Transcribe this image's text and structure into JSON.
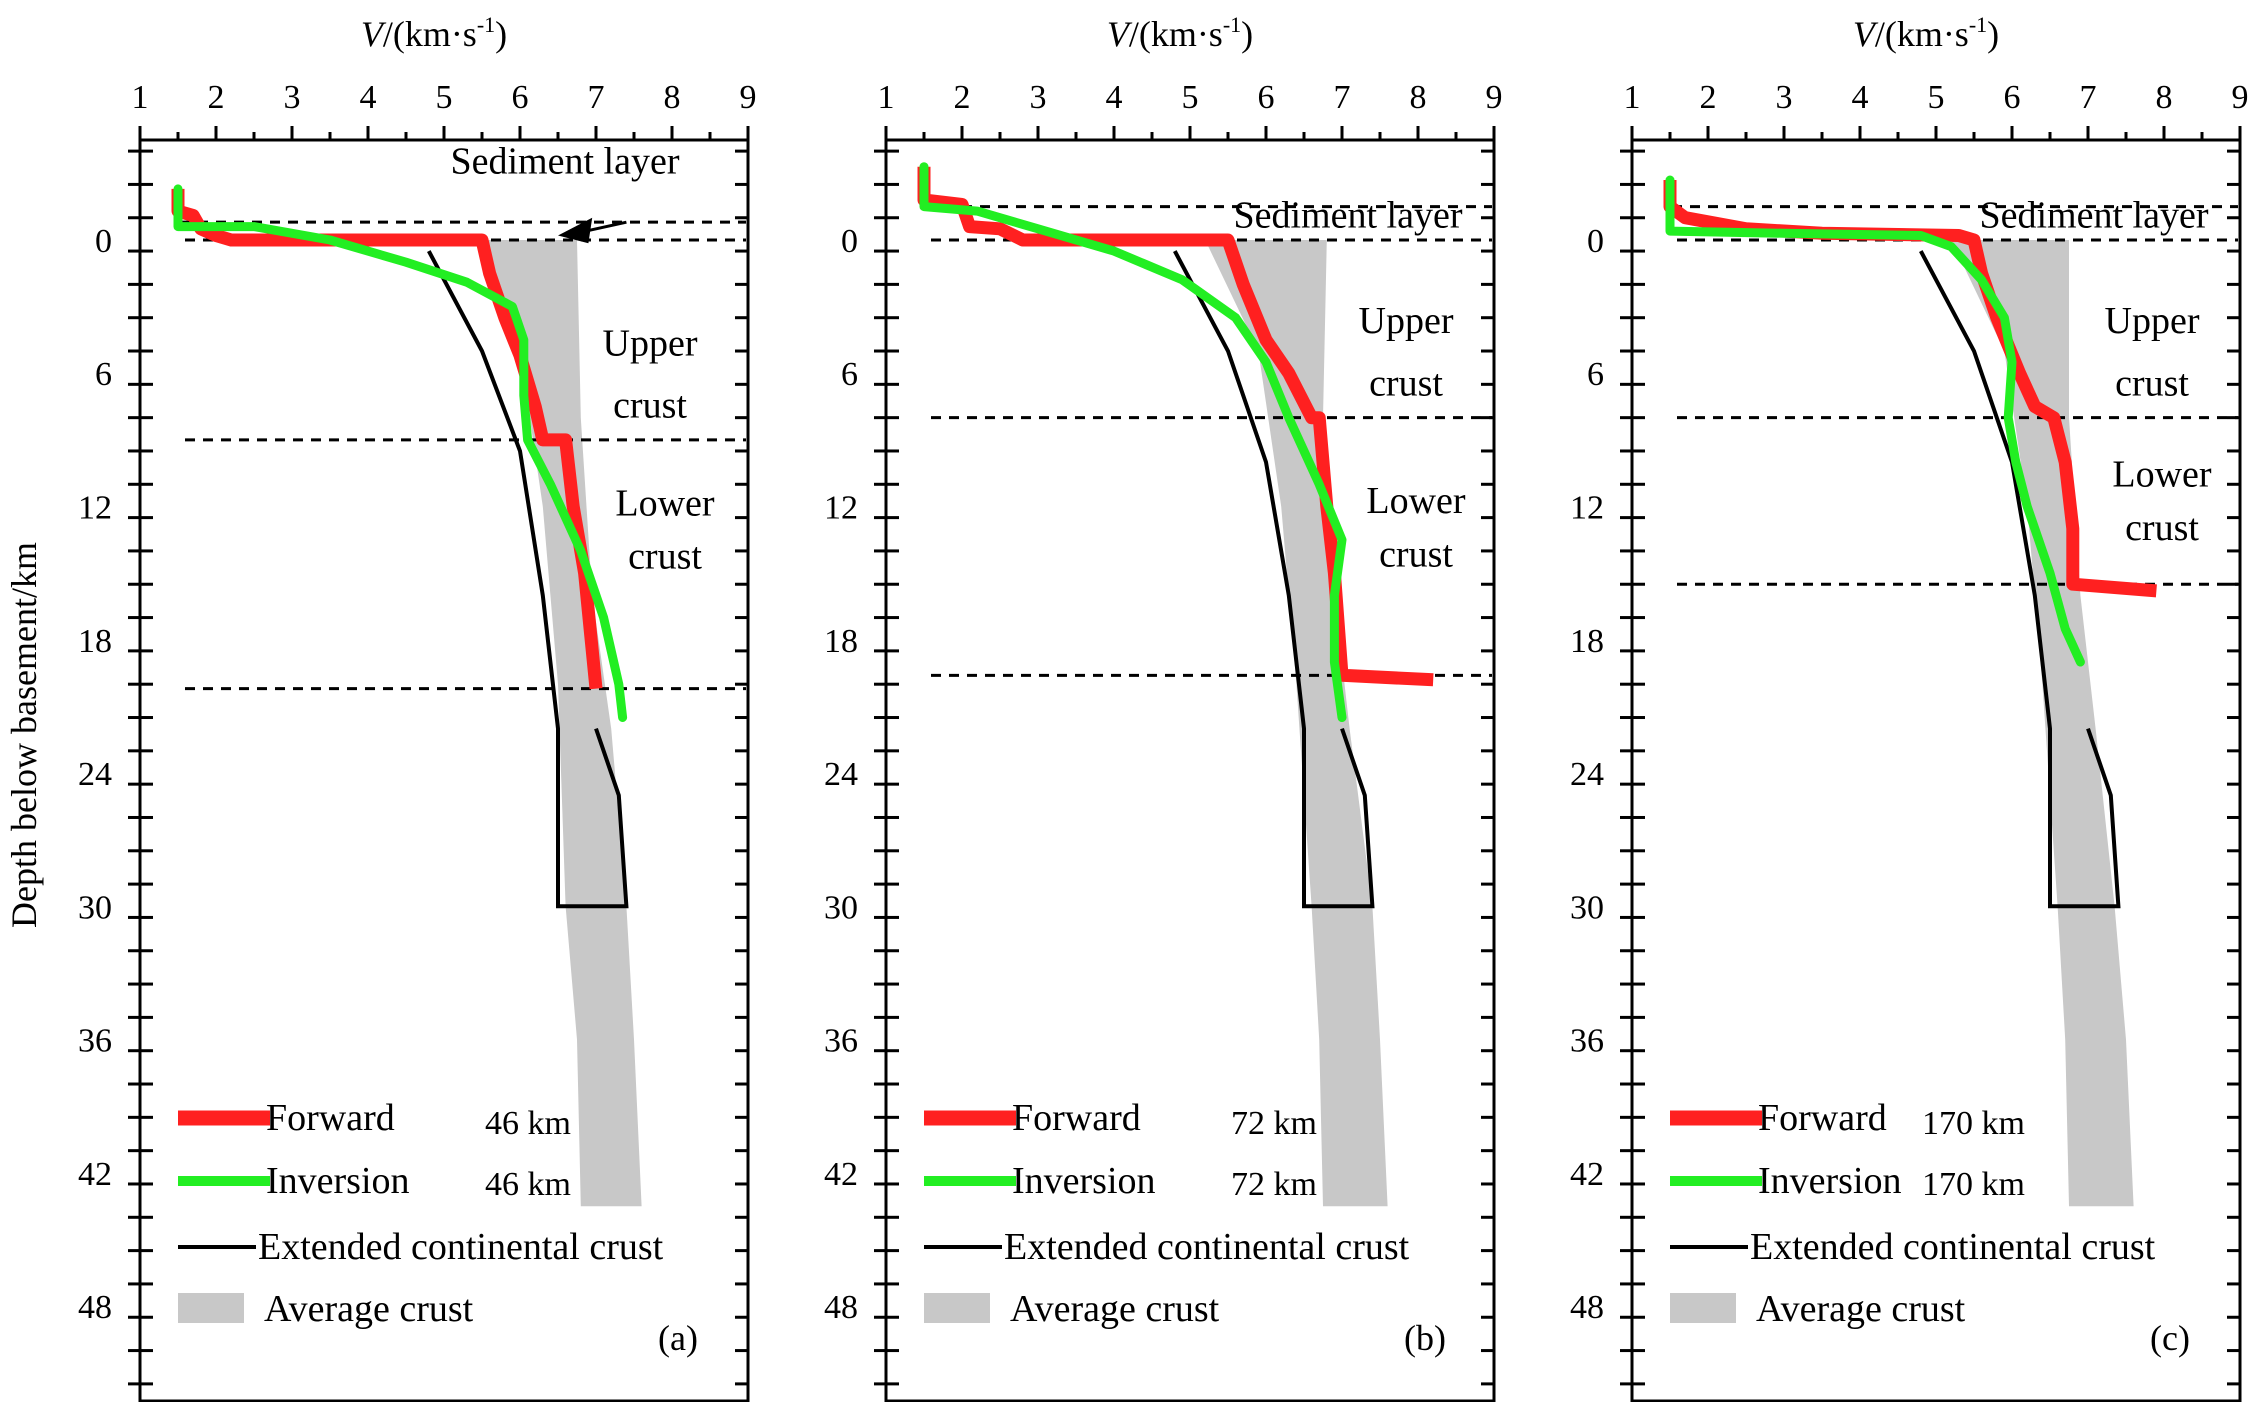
{
  "figure": {
    "y_axis_label": "Depth below basement/km",
    "x_axis_label_var": "V",
    "x_axis_label_unit": "/(km·s",
    "x_axis_label_exp": "-1",
    "x_axis_label_close": ")"
  },
  "colors": {
    "forward": "#ff2020",
    "inversion": "#22ee22",
    "extended": "#000000",
    "average": "#c8c8c8"
  },
  "chart_data": [
    {
      "type": "line",
      "panel_label": "(a)",
      "xlim": [
        1,
        9
      ],
      "ylim": [
        -4.5,
        52
      ],
      "x_ticks": [
        1,
        2,
        3,
        4,
        5,
        6,
        7,
        8,
        9
      ],
      "y_ticks": [
        0,
        6,
        12,
        18,
        24,
        30,
        36,
        42,
        48
      ],
      "layer_labels": [
        "Sediment layer",
        "Upper",
        "crust",
        "Lower",
        "crust"
      ],
      "boundaries": [
        -0.8,
        0,
        9,
        20.2
      ],
      "legend": {
        "forward": "Forward",
        "forward_dist": "46 km",
        "inversion": "Inversion",
        "inversion_dist": "46 km",
        "extended": "Extended continental crust",
        "average": "Average crust"
      },
      "series": [
        {
          "name": "Forward",
          "points": [
            [
              1.5,
              -2.3
            ],
            [
              1.5,
              -1.3
            ],
            [
              1.7,
              -1.1
            ],
            [
              1.8,
              -0.5
            ],
            [
              2,
              -0.2
            ],
            [
              2.2,
              0
            ],
            [
              5.5,
              0
            ],
            [
              5.6,
              1.5
            ],
            [
              5.8,
              3.5
            ],
            [
              6.0,
              5.2
            ],
            [
              6.2,
              7.5
            ],
            [
              6.3,
              9
            ],
            [
              6.6,
              9
            ],
            [
              6.7,
              12
            ],
            [
              6.85,
              15
            ],
            [
              7.0,
              20.2
            ]
          ]
        },
        {
          "name": "Inversion",
          "points": [
            [
              1.5,
              -2.3
            ],
            [
              1.5,
              -0.6
            ],
            [
              2.5,
              -0.6
            ],
            [
              3.5,
              0
            ],
            [
              4.5,
              1
            ],
            [
              5.3,
              1.9
            ],
            [
              5.9,
              3
            ],
            [
              6.05,
              4.5
            ],
            [
              6.05,
              7
            ],
            [
              6.1,
              9
            ],
            [
              6.4,
              11
            ],
            [
              6.8,
              14
            ],
            [
              7.1,
              17
            ],
            [
              7.3,
              20
            ],
            [
              7.35,
              21.5
            ]
          ]
        },
        {
          "name": "Extended continental crust",
          "points": [
            [
              4.8,
              0.5
            ],
            [
              5.5,
              5
            ],
            [
              6.0,
              9.5
            ],
            [
              6.3,
              16
            ],
            [
              6.5,
              22
            ],
            [
              6.5,
              30
            ],
            [
              7.4,
              30
            ],
            [
              7.3,
              25
            ],
            [
              7.0,
              22
            ]
          ]
        },
        {
          "name": "Average crust",
          "left": [
            [
              5.5,
              0
            ],
            [
              6.0,
              5
            ],
            [
              6.3,
              12
            ],
            [
              6.5,
              20
            ],
            [
              6.6,
              30
            ],
            [
              6.75,
              36
            ],
            [
              6.8,
              43.5
            ]
          ],
          "right": [
            [
              6.75,
              0
            ],
            [
              6.8,
              8
            ],
            [
              6.95,
              16
            ],
            [
              7.2,
              22
            ],
            [
              7.4,
              30
            ],
            [
              7.5,
              36
            ],
            [
              7.6,
              43.5
            ]
          ]
        }
      ]
    },
    {
      "type": "line",
      "panel_label": "(b)",
      "xlim": [
        1,
        9
      ],
      "ylim": [
        -4.5,
        52
      ],
      "x_ticks": [
        1,
        2,
        3,
        4,
        5,
        6,
        7,
        8,
        9
      ],
      "y_ticks": [
        0,
        6,
        12,
        18,
        24,
        30,
        36,
        42,
        48
      ],
      "layer_labels": [
        "Sediment layer",
        "Upper",
        "crust",
        "Lower",
        "crust"
      ],
      "boundaries": [
        -1.5,
        0,
        8,
        19.6
      ],
      "legend": {
        "forward": "Forward",
        "forward_dist": "72 km",
        "inversion": "Inversion",
        "inversion_dist": "72 km",
        "extended": "Extended continental crust",
        "average": "Average crust"
      },
      "series": [
        {
          "name": "Forward",
          "points": [
            [
              1.5,
              -3.3
            ],
            [
              1.5,
              -1.8
            ],
            [
              2.0,
              -1.6
            ],
            [
              2.1,
              -0.6
            ],
            [
              2.5,
              -0.5
            ],
            [
              2.8,
              0
            ],
            [
              5.5,
              0
            ],
            [
              5.7,
              2
            ],
            [
              6.0,
              4.5
            ],
            [
              6.3,
              6
            ],
            [
              6.6,
              8
            ],
            [
              6.7,
              8
            ],
            [
              6.8,
              12
            ],
            [
              6.9,
              15
            ],
            [
              7.0,
              19.6
            ],
            [
              8.2,
              19.8
            ]
          ]
        },
        {
          "name": "Inversion",
          "points": [
            [
              1.5,
              -3.3
            ],
            [
              1.5,
              -1.5
            ],
            [
              2.2,
              -1.3
            ],
            [
              3.0,
              -0.5
            ],
            [
              4.0,
              0.5
            ],
            [
              4.9,
              1.8
            ],
            [
              5.6,
              3.5
            ],
            [
              6.0,
              5.5
            ],
            [
              6.3,
              8
            ],
            [
              6.7,
              11
            ],
            [
              7.0,
              13.5
            ],
            [
              6.9,
              16
            ],
            [
              6.9,
              19
            ],
            [
              7.0,
              21.5
            ]
          ]
        },
        {
          "name": "Extended continental crust",
          "points": [
            [
              4.8,
              0.5
            ],
            [
              5.5,
              5
            ],
            [
              6.0,
              10
            ],
            [
              6.3,
              16
            ],
            [
              6.5,
              22
            ],
            [
              6.5,
              30
            ],
            [
              7.4,
              30
            ],
            [
              7.3,
              25
            ],
            [
              7.0,
              22
            ]
          ]
        },
        {
          "name": "Average crust",
          "left": [
            [
              5.2,
              0
            ],
            [
              5.9,
              5
            ],
            [
              6.2,
              12
            ],
            [
              6.4,
              20
            ],
            [
              6.6,
              30
            ],
            [
              6.7,
              36
            ],
            [
              6.75,
              43.5
            ]
          ],
          "right": [
            [
              6.8,
              0
            ],
            [
              6.75,
              8
            ],
            [
              6.9,
              16
            ],
            [
              7.1,
              22
            ],
            [
              7.4,
              30
            ],
            [
              7.5,
              36
            ],
            [
              7.6,
              43.5
            ]
          ]
        }
      ]
    },
    {
      "type": "line",
      "panel_label": "(c)",
      "xlim": [
        1,
        9
      ],
      "ylim": [
        -4.5,
        52
      ],
      "x_ticks": [
        1,
        2,
        3,
        4,
        5,
        6,
        7,
        8,
        9
      ],
      "y_ticks": [
        0,
        6,
        12,
        18,
        24,
        30,
        36,
        42,
        48
      ],
      "layer_labels": [
        "Sediment layer",
        "Upper",
        "crust",
        "Lower",
        "crust"
      ],
      "boundaries": [
        -1.5,
        0,
        8,
        15.5
      ],
      "legend": {
        "forward": "Forward",
        "forward_dist": "170 km",
        "inversion": "Inversion",
        "inversion_dist": "170 km",
        "extended": "Extended continental crust",
        "average": "Average crust"
      },
      "series": [
        {
          "name": "Forward",
          "points": [
            [
              1.5,
              -2.7
            ],
            [
              1.5,
              -1.5
            ],
            [
              1.7,
              -1.0
            ],
            [
              2.5,
              -0.5
            ],
            [
              3.5,
              -0.3
            ],
            [
              5.3,
              -0.2
            ],
            [
              5.5,
              0
            ],
            [
              5.6,
              1.5
            ],
            [
              5.8,
              3.5
            ],
            [
              6.1,
              6
            ],
            [
              6.3,
              7.5
            ],
            [
              6.55,
              8
            ],
            [
              6.7,
              10
            ],
            [
              6.8,
              13
            ],
            [
              6.8,
              15.5
            ],
            [
              7.9,
              15.8
            ]
          ]
        },
        {
          "name": "Inversion",
          "points": [
            [
              1.5,
              -2.7
            ],
            [
              1.5,
              -0.4
            ],
            [
              3.0,
              -0.3
            ],
            [
              4.8,
              -0.2
            ],
            [
              5.2,
              0.3
            ],
            [
              5.6,
              1.8
            ],
            [
              5.9,
              3.5
            ],
            [
              6.0,
              5.5
            ],
            [
              5.95,
              8
            ],
            [
              6.05,
              10
            ],
            [
              6.2,
              12
            ],
            [
              6.5,
              15
            ],
            [
              6.7,
              17.5
            ],
            [
              6.9,
              19
            ]
          ]
        },
        {
          "name": "Extended continental crust",
          "points": [
            [
              4.8,
              0.5
            ],
            [
              5.5,
              5
            ],
            [
              6.0,
              10
            ],
            [
              6.3,
              16
            ],
            [
              6.5,
              22
            ],
            [
              6.5,
              30
            ],
            [
              7.4,
              30
            ],
            [
              7.3,
              25
            ],
            [
              7.0,
              22
            ]
          ]
        },
        {
          "name": "Average crust",
          "left": [
            [
              5.2,
              0
            ],
            [
              5.9,
              5
            ],
            [
              6.2,
              12
            ],
            [
              6.4,
              20
            ],
            [
              6.6,
              30
            ],
            [
              6.7,
              36
            ],
            [
              6.75,
              43.5
            ]
          ],
          "right": [
            [
              6.75,
              0
            ],
            [
              6.75,
              8
            ],
            [
              6.9,
              16
            ],
            [
              7.1,
              22
            ],
            [
              7.35,
              30
            ],
            [
              7.5,
              36
            ],
            [
              7.6,
              43.5
            ]
          ]
        }
      ]
    }
  ]
}
